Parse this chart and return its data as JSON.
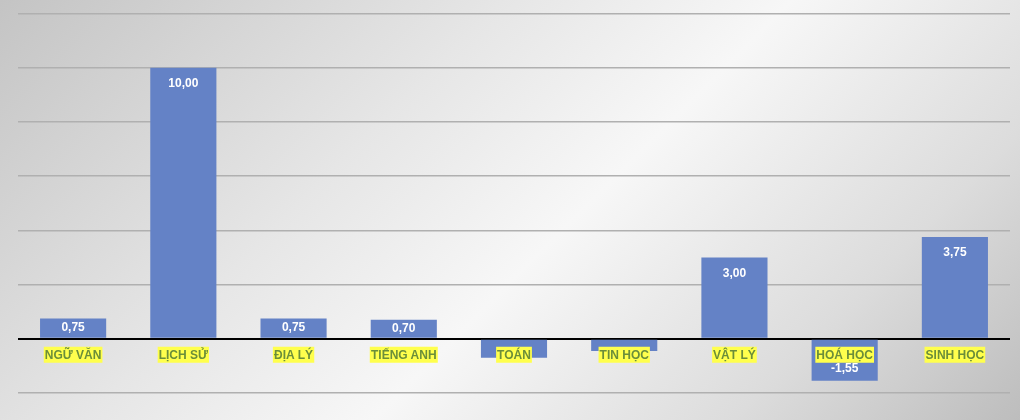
{
  "chart_data": {
    "type": "bar",
    "categories": [
      "NGỮ VĂN",
      "LỊCH SỬ",
      "ĐỊA LÝ",
      "TIẾNG ANH",
      "TOÁN",
      "TIN HỌC",
      "VẬT LÝ",
      "HOÁ HỌC",
      "SINH HỌC"
    ],
    "values": [
      0.75,
      10,
      0.75,
      0.7,
      -0.7,
      -0.45,
      3,
      -1.55,
      3.75
    ],
    "value_labels": [
      "0,75",
      "10,00",
      "0,75",
      "0,70",
      null,
      null,
      "3,00",
      "-1,55",
      "3,75"
    ],
    "color": "#6482c6",
    "ylim": [
      -3,
      12.5
    ],
    "yticks": [
      {
        "value": -2,
        "label": null
      },
      {
        "value": 0,
        "label": null
      },
      {
        "value": 2,
        "label": null
      },
      {
        "value": 4,
        "label": null
      },
      {
        "value": 6,
        "label": null
      },
      {
        "value": 8,
        "label": null
      },
      {
        "value": 10,
        "label": null
      },
      {
        "value": 12,
        "label": null
      }
    ],
    "grid": "y",
    "tick_labels": "x",
    "legend": false
  }
}
